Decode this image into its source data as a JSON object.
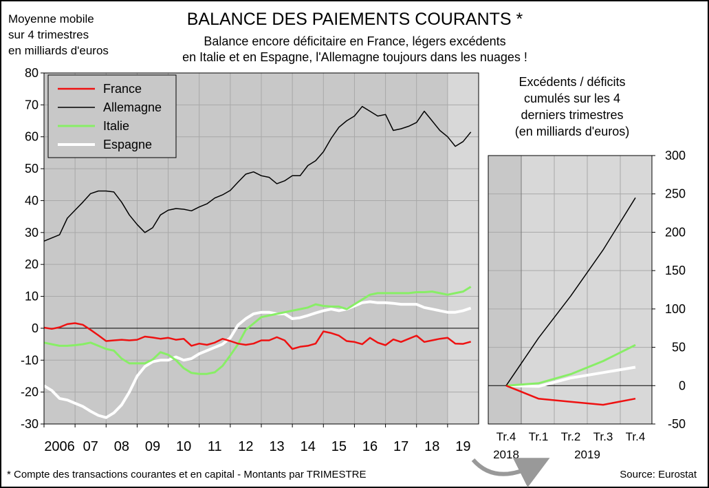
{
  "title": "BALANCE DES PAIEMENTS COURANTS *",
  "subtitle_lines": [
    "Balance encore déficitaire en France, légers excédents",
    "en Italie et en Espagne, l'Allemagne toujours dans les nuages !"
  ],
  "footnote": "* Compte des transactions courantes et en capital - Montants par TRIMESTRE",
  "source": "Source: Eurostat",
  "colors": {
    "France": "#ee1111",
    "Allemagne": "#000000",
    "Italie": "#88ee66",
    "Espagne": "#ffffff",
    "plot_bg": "#c8c8c8",
    "shaded_bg": "#d8d8d8"
  },
  "chart_data": [
    {
      "type": "line",
      "ylabel_lines": [
        "Moyenne mobile",
        "sur 4 trimestres",
        "en milliards d'euros"
      ],
      "ylim": [
        -30,
        80
      ],
      "yticks": [
        -30,
        -20,
        -10,
        0,
        10,
        20,
        30,
        40,
        50,
        60,
        70,
        80
      ],
      "xlim": [
        2006.0,
        2020.0
      ],
      "xtick_labels": [
        "2006",
        "07",
        "08",
        "09",
        "10",
        "11",
        "12",
        "13",
        "14",
        "15",
        "16",
        "17",
        "18",
        "19"
      ],
      "grid": true,
      "legend_position": "top-left",
      "shaded_from": 2019.0,
      "series": [
        {
          "name": "France",
          "x": [
            2006.0,
            2006.25,
            2006.5,
            2006.75,
            2007.0,
            2007.25,
            2007.5,
            2007.75,
            2008.0,
            2008.25,
            2008.5,
            2008.75,
            2009.0,
            2009.25,
            2009.5,
            2009.75,
            2010.0,
            2010.25,
            2010.5,
            2010.75,
            2011.0,
            2011.25,
            2011.5,
            2011.75,
            2012.0,
            2012.25,
            2012.5,
            2012.75,
            2013.0,
            2013.25,
            2013.5,
            2013.75,
            2014.0,
            2014.25,
            2014.5,
            2014.75,
            2015.0,
            2015.25,
            2015.5,
            2015.75,
            2016.0,
            2016.25,
            2016.5,
            2016.75,
            2017.0,
            2017.25,
            2017.5,
            2017.75,
            2018.0,
            2018.25,
            2018.5,
            2018.75,
            2019.0,
            2019.25,
            2019.5,
            2019.75
          ],
          "y": [
            0.2,
            -0.2,
            0.3,
            1.3,
            1.6,
            1.1,
            -0.5,
            -2.2,
            -4.0,
            -3.8,
            -3.6,
            -3.8,
            -3.6,
            -2.6,
            -2.9,
            -3.3,
            -3.0,
            -3.6,
            -3.3,
            -5.5,
            -4.8,
            -5.2,
            -4.5,
            -3.3,
            -4.0,
            -4.8,
            -5.2,
            -4.8,
            -3.8,
            -3.8,
            -2.8,
            -3.8,
            -6.5,
            -5.8,
            -5.5,
            -4.8,
            -1.0,
            -1.5,
            -2.3,
            -4.0,
            -4.3,
            -5.0,
            -3.0,
            -4.5,
            -5.3,
            -3.5,
            -4.3,
            -3.3,
            -2.3,
            -4.3,
            -3.8,
            -3.3,
            -3.0,
            -4.8,
            -4.9,
            -4.2
          ]
        },
        {
          "name": "Allemagne",
          "x": [
            2006.0,
            2006.25,
            2006.5,
            2006.75,
            2007.0,
            2007.25,
            2007.5,
            2007.75,
            2008.0,
            2008.25,
            2008.5,
            2008.75,
            2009.0,
            2009.25,
            2009.5,
            2009.75,
            2010.0,
            2010.25,
            2010.5,
            2010.75,
            2011.0,
            2011.25,
            2011.5,
            2011.75,
            2012.0,
            2012.25,
            2012.5,
            2012.75,
            2013.0,
            2013.25,
            2013.5,
            2013.75,
            2014.0,
            2014.25,
            2014.5,
            2014.75,
            2015.0,
            2015.25,
            2015.5,
            2015.75,
            2016.0,
            2016.25,
            2016.5,
            2016.75,
            2017.0,
            2017.25,
            2017.5,
            2017.75,
            2018.0,
            2018.25,
            2018.5,
            2018.75,
            2019.0,
            2019.25,
            2019.5,
            2019.75
          ],
          "y": [
            27.3,
            28.3,
            29.3,
            34.5,
            37.0,
            39.5,
            42.2,
            43.0,
            43.0,
            42.7,
            39.5,
            35.5,
            32.5,
            30.0,
            31.5,
            35.5,
            37.0,
            37.5,
            37.3,
            36.8,
            38.0,
            39.0,
            40.8,
            41.8,
            43.2,
            45.8,
            48.3,
            49.0,
            47.8,
            47.3,
            45.3,
            46.2,
            47.8,
            47.8,
            51.0,
            52.5,
            55.3,
            59.5,
            63.0,
            65.0,
            66.5,
            69.5,
            68.0,
            66.5,
            67.0,
            62.0,
            62.5,
            63.3,
            64.5,
            68.0,
            65.0,
            62.0,
            60.0,
            57.0,
            58.5,
            61.5
          ]
        },
        {
          "name": "Italie",
          "x": [
            2006.0,
            2006.25,
            2006.5,
            2006.75,
            2007.0,
            2007.25,
            2007.5,
            2007.75,
            2008.0,
            2008.25,
            2008.5,
            2008.75,
            2009.0,
            2009.25,
            2009.5,
            2009.75,
            2010.0,
            2010.25,
            2010.5,
            2010.75,
            2011.0,
            2011.25,
            2011.5,
            2011.75,
            2012.0,
            2012.25,
            2012.5,
            2012.75,
            2013.0,
            2013.25,
            2013.5,
            2013.75,
            2014.0,
            2014.25,
            2014.5,
            2014.75,
            2015.0,
            2015.25,
            2015.5,
            2015.75,
            2016.0,
            2016.25,
            2016.5,
            2016.75,
            2017.0,
            2017.25,
            2017.5,
            2017.75,
            2018.0,
            2018.25,
            2018.5,
            2018.75,
            2019.0,
            2019.25,
            2019.5,
            2019.75
          ],
          "y": [
            -4.5,
            -5.0,
            -5.5,
            -5.5,
            -5.3,
            -5.0,
            -4.5,
            -5.5,
            -6.5,
            -7.0,
            -9.5,
            -11.0,
            -11.0,
            -11.0,
            -9.8,
            -7.5,
            -8.3,
            -10.0,
            -12.5,
            -14.0,
            -14.3,
            -14.3,
            -13.8,
            -11.8,
            -8.5,
            -5.0,
            -0.5,
            1.5,
            3.5,
            4.0,
            4.5,
            5.0,
            5.5,
            6.0,
            6.5,
            7.5,
            7.0,
            6.8,
            6.8,
            6.0,
            7.5,
            9.0,
            10.5,
            11.0,
            11.0,
            11.0,
            11.0,
            11.0,
            11.3,
            11.3,
            11.5,
            11.0,
            10.5,
            11.0,
            11.5,
            13.0
          ]
        },
        {
          "name": "Espagne",
          "x": [
            2006.0,
            2006.25,
            2006.5,
            2006.75,
            2007.0,
            2007.25,
            2007.5,
            2007.75,
            2008.0,
            2008.25,
            2008.5,
            2008.75,
            2009.0,
            2009.25,
            2009.5,
            2009.75,
            2010.0,
            2010.25,
            2010.5,
            2010.75,
            2011.0,
            2011.25,
            2011.5,
            2011.75,
            2012.0,
            2012.25,
            2012.5,
            2012.75,
            2013.0,
            2013.25,
            2013.5,
            2013.75,
            2014.0,
            2014.25,
            2014.5,
            2014.75,
            2015.0,
            2015.25,
            2015.5,
            2015.75,
            2016.0,
            2016.25,
            2016.5,
            2016.75,
            2017.0,
            2017.25,
            2017.5,
            2017.75,
            2018.0,
            2018.25,
            2018.5,
            2018.75,
            2019.0,
            2019.25,
            2019.5,
            2019.75
          ],
          "y": [
            -18.0,
            -19.5,
            -22.0,
            -22.5,
            -23.5,
            -24.5,
            -26.0,
            -27.3,
            -28.0,
            -26.5,
            -24.0,
            -20.0,
            -15.0,
            -12.0,
            -10.5,
            -10.0,
            -10.0,
            -9.0,
            -10.0,
            -9.5,
            -8.0,
            -7.0,
            -6.0,
            -5.0,
            -3.0,
            1.0,
            3.0,
            4.5,
            5.0,
            5.0,
            4.5,
            4.5,
            3.0,
            3.3,
            4.0,
            4.8,
            5.5,
            6.0,
            5.5,
            6.0,
            7.0,
            8.0,
            8.3,
            8.0,
            8.0,
            7.8,
            7.5,
            7.5,
            7.5,
            6.5,
            6.0,
            5.5,
            5.0,
            5.0,
            5.5,
            6.3
          ]
        }
      ]
    },
    {
      "type": "line",
      "title_lines": [
        "Excédents / déficits",
        "cumulés sur les 4",
        "derniers trimestres",
        "(en milliards d'euros)"
      ],
      "categories": [
        "Tr.4",
        "Tr.1",
        "Tr.2",
        "Tr.3",
        "Tr.4"
      ],
      "year_labels": [
        "2018",
        "2019"
      ],
      "ylim": [
        -50,
        300
      ],
      "yticks": [
        -50,
        0,
        50,
        100,
        150,
        200,
        250,
        300
      ],
      "grid": true,
      "series": [
        {
          "name": "Allemagne",
          "values": [
            0,
            62,
            117,
            177,
            245
          ]
        },
        {
          "name": "Italie",
          "values": [
            0,
            3,
            15,
            32,
            53
          ]
        },
        {
          "name": "Espagne",
          "values": [
            0,
            -1,
            10,
            17,
            24
          ]
        },
        {
          "name": "France",
          "values": [
            0,
            -17,
            -21,
            -25,
            -17
          ]
        }
      ]
    }
  ]
}
